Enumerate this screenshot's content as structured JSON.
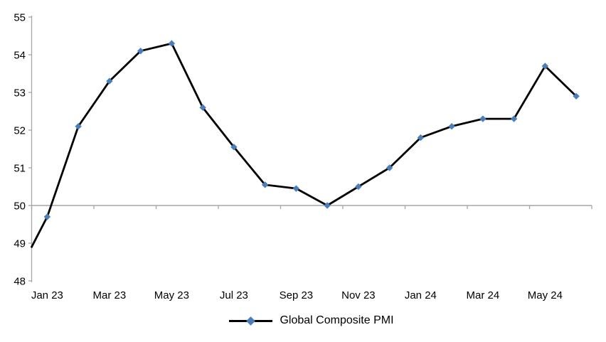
{
  "chart_data": {
    "type": "line",
    "title": "",
    "categories": [
      "Jan 23",
      "Feb 23",
      "Mar 23",
      "Apr 23",
      "May 23",
      "Jun 23",
      "Jul 23",
      "Aug 23",
      "Sep 23",
      "Oct 23",
      "Nov 23",
      "Dec 23",
      "Jan 24",
      "Feb 24",
      "Mar 24",
      "Apr 24",
      "May 24",
      "Jun 24"
    ],
    "series": [
      {
        "name": "Global Composite PMI",
        "values": [
          49.7,
          52.1,
          53.3,
          54.1,
          54.3,
          52.6,
          51.55,
          50.55,
          50.45,
          50.0,
          50.5,
          51.0,
          51.8,
          52.1,
          52.3,
          52.3,
          53.7,
          52.9
        ]
      }
    ],
    "edge_start_value": 48.9,
    "x_axis": {
      "tick_labels": [
        "Jan 23",
        "Mar 23",
        "May 23",
        "Jul 23",
        "Sep 23",
        "Nov 23",
        "Jan 24",
        "Mar 24",
        "May 24"
      ],
      "label_every_n_categories": 2
    },
    "y_axis": {
      "min": 48,
      "max": 55,
      "tick_interval": 1,
      "tick_labels": [
        "48",
        "49",
        "50",
        "51",
        "52",
        "53",
        "54",
        "55"
      ]
    },
    "baseline_value": 50,
    "grid": "off",
    "legend": {
      "position": "bottom-center",
      "entries": [
        {
          "label": "Global Composite PMI",
          "marker": "diamond"
        }
      ]
    },
    "colors": {
      "series_line": "#000000",
      "marker_fill": "#4a7ebb",
      "axis_line": "#a6a6a6",
      "text": "#000000",
      "background": "#ffffff"
    }
  }
}
